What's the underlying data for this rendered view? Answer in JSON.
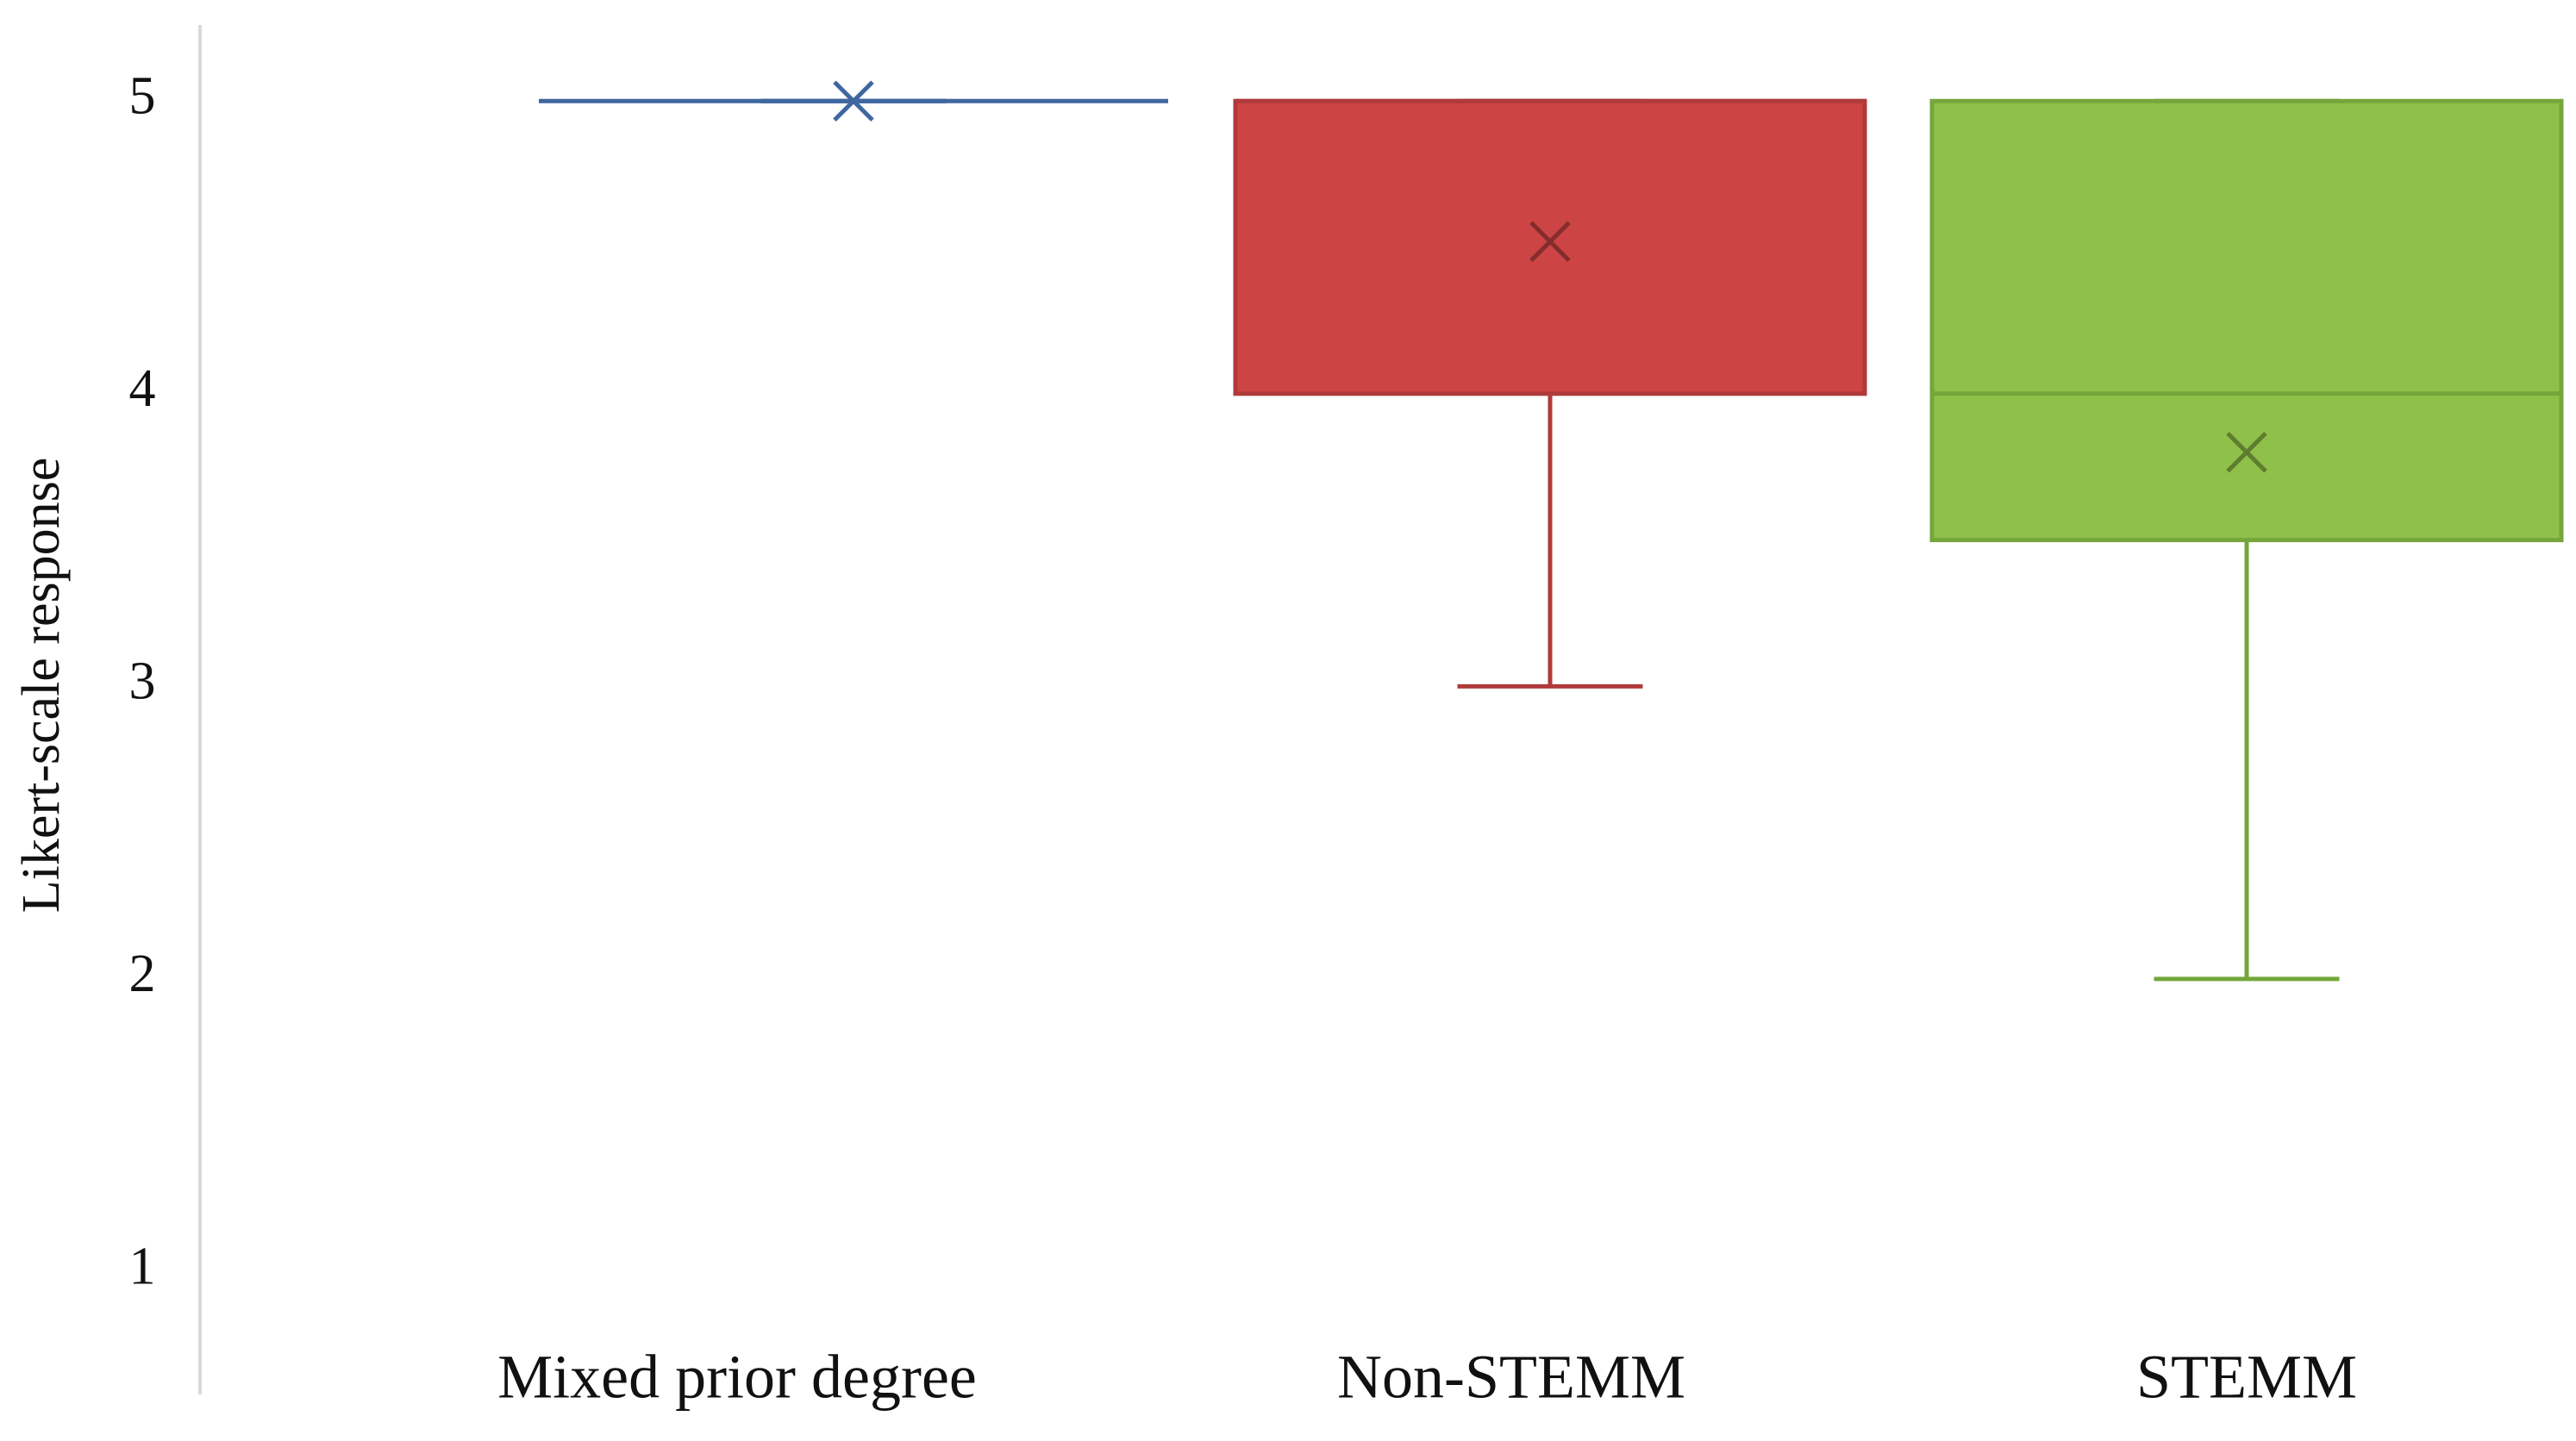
{
  "chart_data": {
    "type": "box",
    "y_label": "Likert-scale response",
    "categories": [
      "Mixed prior degree",
      "Non-STEMM",
      "STEMM"
    ],
    "min": [
      5,
      3,
      2
    ],
    "q1": [
      5,
      4,
      3.5
    ],
    "median": [
      5,
      5,
      4
    ],
    "q3": [
      5,
      5,
      5
    ],
    "max": [
      5,
      5,
      5
    ],
    "mean": [
      5,
      4.52,
      3.8
    ],
    "colors": [
      "#3f67a0",
      "#cd4444",
      "#8fc04a"
    ],
    "stroke_colors": [
      "#3f67a0",
      "#b03a3a",
      "#74a63b"
    ],
    "ylim": [
      0.58,
      5.26
    ],
    "yticks": [
      1,
      2,
      3,
      4,
      5
    ],
    "grid": false
  }
}
